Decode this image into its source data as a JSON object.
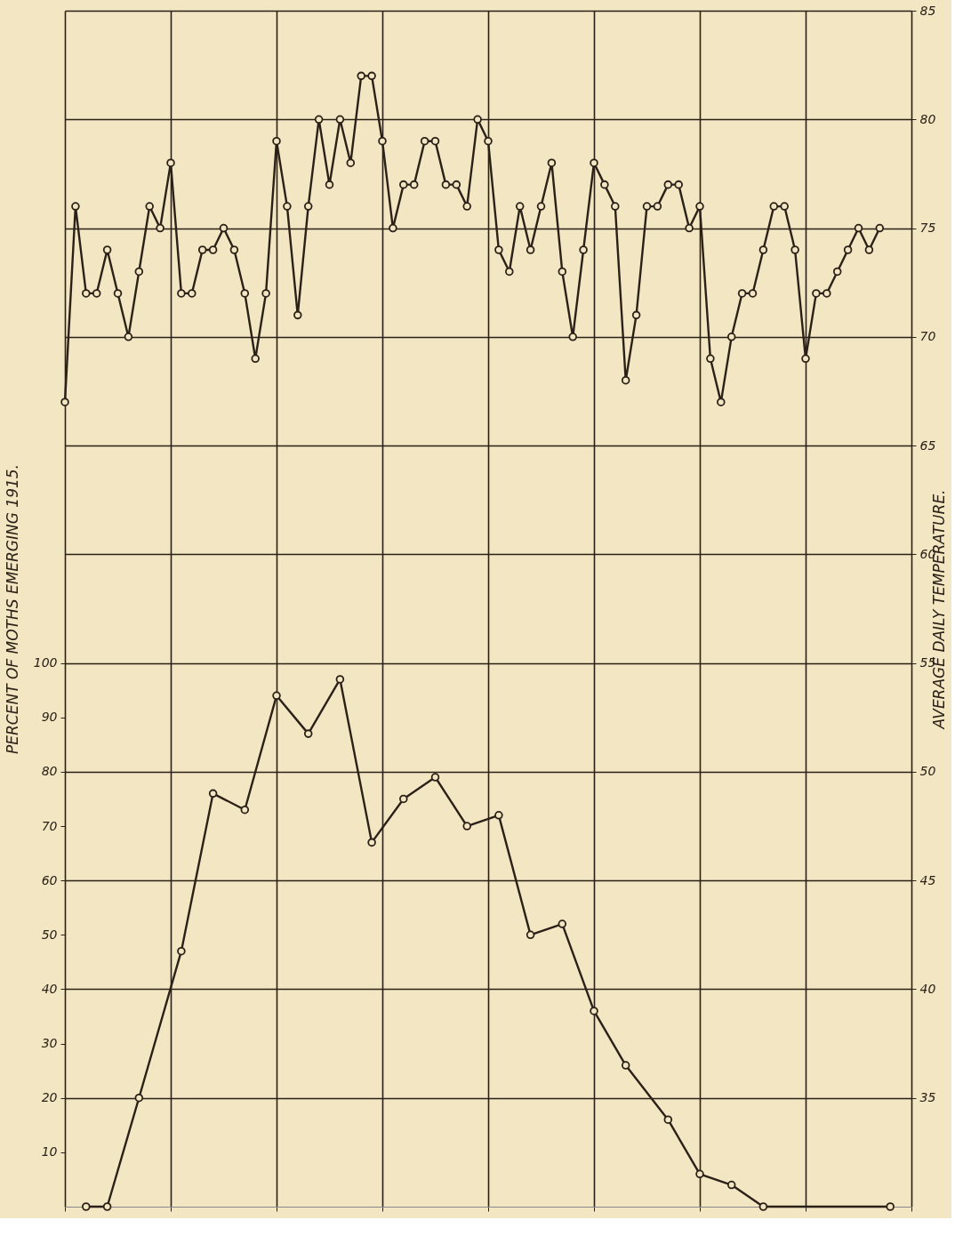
{
  "chart_data": {
    "type": "line",
    "ylabel": "PERCENT OF MOTHS EMERGING 1915.",
    "y2label": "AVERAGE DAILY TEMPERATURE.",
    "categories": [
      null,
      null,
      null,
      null,
      null,
      null,
      null,
      null,
      null,
      null,
      null,
      null,
      null,
      null,
      null,
      null,
      null,
      null,
      null,
      null,
      null,
      null,
      null,
      null,
      null,
      null,
      null,
      null,
      null,
      null,
      null,
      null,
      null,
      null,
      null,
      null,
      null,
      null,
      null,
      null,
      null,
      null,
      null,
      null,
      null,
      null,
      null,
      null,
      null,
      null,
      null,
      null,
      null,
      null,
      null,
      null,
      null,
      null,
      null,
      null,
      null,
      null,
      null,
      null,
      null,
      null,
      null,
      null,
      null,
      null,
      null,
      null,
      null,
      null,
      null,
      null,
      null,
      null,
      null,
      null,
      null
    ],
    "ylim": [
      0,
      220
    ],
    "yticks": [
      10,
      20,
      30,
      40,
      50,
      60,
      70,
      80,
      90,
      100
    ],
    "y2lim": [
      30,
      85
    ],
    "y2ticks": [
      35,
      40,
      45,
      50,
      55,
      60,
      65,
      70,
      75,
      80,
      85
    ],
    "tick_labels": "y",
    "grid": true,
    "marker": "circle",
    "line_style": "solid",
    "series": [
      {
        "color": "#2b2118",
        "axis": "y",
        "values": [
          null,
          null,
          0,
          null,
          0,
          null,
          null,
          20,
          null,
          null,
          null,
          47,
          null,
          null,
          76,
          null,
          null,
          73,
          null,
          null,
          94,
          null,
          null,
          87,
          null,
          null,
          97,
          null,
          null,
          67,
          null,
          null,
          75,
          null,
          null,
          79,
          null,
          null,
          70,
          null,
          null,
          72,
          null,
          null,
          50,
          null,
          null,
          52,
          null,
          null,
          36,
          null,
          null,
          26,
          null,
          null,
          null,
          16,
          null,
          null,
          6,
          null,
          null,
          4,
          null,
          null,
          0,
          null,
          null,
          null,
          null,
          null,
          null,
          null,
          null,
          null,
          null,
          null,
          0,
          null,
          null
        ]
      },
      {
        "color": "#2b2118",
        "axis": "y2",
        "values": [
          67,
          76,
          72,
          72,
          74,
          72,
          70,
          73,
          76,
          75,
          78,
          72,
          72,
          74,
          74,
          75,
          74,
          72,
          69,
          72,
          79,
          76,
          71,
          76,
          80,
          77,
          80,
          78,
          82,
          82,
          79,
          75,
          77,
          77,
          79,
          79,
          77,
          77,
          76,
          80,
          79,
          74,
          73,
          76,
          74,
          76,
          78,
          73,
          70,
          74,
          78,
          77,
          76,
          68,
          71,
          76,
          76,
          77,
          77,
          75,
          76,
          69,
          67,
          70,
          72,
          72,
          74,
          76,
          76,
          74,
          69,
          72,
          72,
          73,
          74,
          75,
          74,
          75,
          null,
          null,
          null
        ]
      }
    ]
  }
}
